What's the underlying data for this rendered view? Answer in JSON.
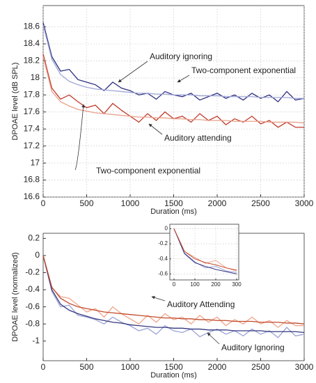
{
  "chart_data": [
    {
      "type": "line",
      "xlabel": "Duration (ms)",
      "ylabel": "DPOAE level (dB SPL)",
      "grid": true,
      "xlim": [
        0,
        3000
      ],
      "xticks": [
        0,
        500,
        1000,
        1500,
        2000,
        2500,
        3000
      ],
      "ylim": [
        16.6,
        18.85
      ],
      "yticks": [
        16.6,
        16.8,
        17,
        17.2,
        17.4,
        17.6,
        17.8,
        18,
        18.2,
        18.4,
        18.6
      ],
      "x": [
        0,
        100,
        200,
        300,
        400,
        500,
        600,
        700,
        800,
        900,
        1000,
        1100,
        1200,
        1300,
        1400,
        1500,
        1600,
        1700,
        1800,
        1900,
        2000,
        2100,
        2200,
        2300,
        2400,
        2500,
        2600,
        2700,
        2800,
        2900,
        3000
      ],
      "series": [
        {
          "name": "Auditory ignoring",
          "color": "#2e2f7f",
          "values": [
            18.65,
            18.25,
            18.08,
            18.1,
            17.98,
            17.95,
            17.92,
            17.85,
            17.95,
            17.88,
            17.85,
            17.8,
            17.82,
            17.75,
            17.84,
            17.8,
            17.78,
            17.82,
            17.74,
            17.78,
            17.82,
            17.76,
            17.8,
            17.74,
            17.82,
            17.76,
            17.8,
            17.72,
            17.84,
            17.74,
            17.76
          ]
        },
        {
          "name": "Two-component exponential",
          "color": "#9fa6d6",
          "values": [
            18.62,
            18.22,
            18.04,
            17.96,
            17.92,
            17.89,
            17.87,
            17.86,
            17.85,
            17.84,
            17.83,
            17.82,
            17.82,
            17.81,
            17.81,
            17.8,
            17.8,
            17.8,
            17.79,
            17.79,
            17.79,
            17.78,
            17.78,
            17.78,
            17.78,
            17.77,
            17.77,
            17.77,
            17.77,
            17.76,
            17.76
          ]
        },
        {
          "name": "Auditory attending",
          "color": "#c0392b",
          "values": [
            18.28,
            17.88,
            17.75,
            17.8,
            17.72,
            17.65,
            17.68,
            17.58,
            17.7,
            17.62,
            17.55,
            17.48,
            17.58,
            17.5,
            17.6,
            17.52,
            17.55,
            17.48,
            17.58,
            17.5,
            17.55,
            17.45,
            17.52,
            17.48,
            17.55,
            17.46,
            17.5,
            17.42,
            17.48,
            17.42,
            17.42
          ]
        },
        {
          "name": "Two-component exponential",
          "color": "#e8a08a",
          "values": [
            18.25,
            17.84,
            17.72,
            17.67,
            17.63,
            17.61,
            17.59,
            17.58,
            17.57,
            17.56,
            17.55,
            17.54,
            17.54,
            17.53,
            17.53,
            17.52,
            17.52,
            17.51,
            17.51,
            17.5,
            17.5,
            17.5,
            17.49,
            17.49,
            17.49,
            17.49,
            17.48,
            17.48,
            17.48,
            17.48,
            17.47
          ]
        }
      ]
    },
    {
      "type": "line",
      "xlabel": "Duration (ms)",
      "ylabel": "DPOAE level (normalized)",
      "grid": false,
      "xlim": [
        0,
        3000
      ],
      "xticks": [
        0,
        500,
        1000,
        1500,
        2000,
        2500,
        3000
      ],
      "ylim": [
        -1.23,
        0.26
      ],
      "yticks": [
        -1,
        -0.8,
        -0.6,
        -0.4,
        -0.2,
        0,
        0.2
      ],
      "x": [
        0,
        100,
        200,
        300,
        400,
        500,
        600,
        700,
        800,
        900,
        1000,
        1100,
        1200,
        1300,
        1400,
        1500,
        1600,
        1700,
        1800,
        1900,
        2000,
        2100,
        2200,
        2300,
        2400,
        2500,
        2600,
        2700,
        2800,
        2900,
        3000
      ],
      "series": [
        {
          "color": "#9aa3d8",
          "values": [
            0,
            -0.42,
            -0.6,
            -0.58,
            -0.7,
            -0.72,
            -0.75,
            -0.8,
            -0.72,
            -0.78,
            -0.82,
            -0.88,
            -0.85,
            -0.92,
            -0.82,
            -0.88,
            -0.9,
            -0.86,
            -0.95,
            -0.9,
            -0.86,
            -0.92,
            -0.88,
            -0.94,
            -0.86,
            -0.92,
            -0.88,
            -0.96,
            -0.84,
            -0.94,
            -0.92
          ]
        },
        {
          "color": "#f0a58a",
          "values": [
            0,
            -0.38,
            -0.48,
            -0.5,
            -0.58,
            -0.66,
            -0.62,
            -0.72,
            -0.6,
            -0.68,
            -0.74,
            -0.8,
            -0.7,
            -0.78,
            -0.68,
            -0.75,
            -0.72,
            -0.8,
            -0.7,
            -0.78,
            -0.72,
            -0.82,
            -0.75,
            -0.8,
            -0.72,
            -0.8,
            -0.76,
            -0.84,
            -0.76,
            -0.82,
            -0.82
          ]
        },
        {
          "name": "Auditory Ignoring",
          "color": "#35387f",
          "values": [
            0,
            -0.4,
            -0.57,
            -0.64,
            -0.68,
            -0.71,
            -0.74,
            -0.76,
            -0.78,
            -0.79,
            -0.81,
            -0.82,
            -0.83,
            -0.84,
            -0.84,
            -0.85,
            -0.85,
            -0.86,
            -0.86,
            -0.87,
            -0.87,
            -0.87,
            -0.88,
            -0.88,
            -0.88,
            -0.88,
            -0.89,
            -0.89,
            -0.89,
            -0.89,
            -0.9
          ]
        },
        {
          "name": "Auditory Attending",
          "color": "#c24a2c",
          "values": [
            0,
            -0.37,
            -0.5,
            -0.56,
            -0.6,
            -0.62,
            -0.64,
            -0.66,
            -0.67,
            -0.68,
            -0.69,
            -0.7,
            -0.71,
            -0.72,
            -0.73,
            -0.73,
            -0.74,
            -0.74,
            -0.75,
            -0.75,
            -0.76,
            -0.76,
            -0.77,
            -0.77,
            -0.77,
            -0.78,
            -0.78,
            -0.78,
            -0.79,
            -0.79,
            -0.8
          ]
        }
      ]
    },
    {
      "type": "line",
      "grid": true,
      "xlim": [
        -20,
        310
      ],
      "xticks": [
        0,
        100,
        200,
        300
      ],
      "ylim": [
        -0.68,
        0.06
      ],
      "yticks": [
        -0.6,
        -0.4,
        -0.2,
        0
      ],
      "x": [
        0,
        50,
        100,
        150,
        200,
        250,
        300
      ],
      "series": [
        {
          "color": "#9aa3d8",
          "values": [
            0,
            -0.32,
            -0.44,
            -0.52,
            -0.5,
            -0.56,
            -0.58
          ]
        },
        {
          "color": "#f0a58a",
          "values": [
            0,
            -0.3,
            -0.38,
            -0.46,
            -0.42,
            -0.52,
            -0.56
          ]
        },
        {
          "color": "#35387f",
          "values": [
            0,
            -0.33,
            -0.45,
            -0.5,
            -0.54,
            -0.57,
            -0.6
          ]
        },
        {
          "color": "#c24a2c",
          "values": [
            0,
            -0.3,
            -0.4,
            -0.45,
            -0.48,
            -0.52,
            -0.55
          ]
        }
      ]
    }
  ]
}
